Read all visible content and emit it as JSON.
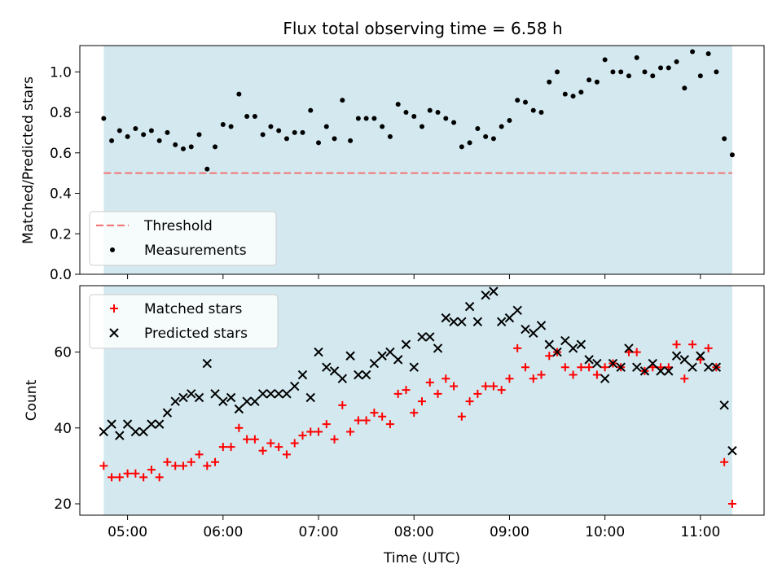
{
  "chart_data": [
    {
      "type": "scatter",
      "title": "Flux total observing time = 6.58 h",
      "xlabel": "",
      "ylabel": "Matched/Predicted stars",
      "ylim": [
        0.0,
        1.13
      ],
      "xlim": [
        "04:30",
        "11:40"
      ],
      "yticks": [
        "0.0",
        "0.2",
        "0.4",
        "0.6",
        "0.8",
        "1.0"
      ],
      "threshold": 0.5,
      "observing_window": [
        "04:45",
        "11:20"
      ],
      "legend_placement": "lower-left",
      "legend": [
        "Threshold",
        "Measurements"
      ],
      "series": [
        {
          "name": "Measurements",
          "x": [
            "04:45",
            "04:50",
            "04:55",
            "05:00",
            "05:05",
            "05:10",
            "05:15",
            "05:20",
            "05:25",
            "05:30",
            "05:35",
            "05:40",
            "05:45",
            "05:50",
            "05:55",
            "06:00",
            "06:05",
            "06:10",
            "06:15",
            "06:20",
            "06:25",
            "06:30",
            "06:35",
            "06:40",
            "06:45",
            "06:50",
            "06:55",
            "07:00",
            "07:05",
            "07:10",
            "07:15",
            "07:20",
            "07:25",
            "07:30",
            "07:35",
            "07:40",
            "07:45",
            "07:50",
            "07:55",
            "08:00",
            "08:05",
            "08:10",
            "08:15",
            "08:20",
            "08:25",
            "08:30",
            "08:35",
            "08:40",
            "08:45",
            "08:50",
            "08:55",
            "09:00",
            "09:05",
            "09:10",
            "09:15",
            "09:20",
            "09:25",
            "09:30",
            "09:35",
            "09:40",
            "09:45",
            "09:50",
            "09:55",
            "10:00",
            "10:05",
            "10:10",
            "10:15",
            "10:20",
            "10:25",
            "10:30",
            "10:35",
            "10:40",
            "10:45",
            "10:50",
            "10:55",
            "11:00",
            "11:05",
            "11:10",
            "11:15",
            "11:20"
          ],
          "values": [
            0.77,
            0.66,
            0.71,
            0.68,
            0.72,
            0.69,
            0.71,
            0.66,
            0.7,
            0.64,
            0.62,
            0.63,
            0.69,
            0.52,
            0.63,
            0.74,
            0.73,
            0.89,
            0.78,
            0.78,
            0.69,
            0.73,
            0.71,
            0.67,
            0.7,
            0.7,
            0.81,
            0.65,
            0.73,
            0.67,
            0.86,
            0.66,
            0.77,
            0.77,
            0.77,
            0.73,
            0.68,
            0.84,
            0.8,
            0.78,
            0.73,
            0.81,
            0.8,
            0.77,
            0.75,
            0.63,
            0.65,
            0.72,
            0.68,
            0.67,
            0.73,
            0.76,
            0.86,
            0.85,
            0.81,
            0.8,
            0.95,
            1.0,
            0.89,
            0.88,
            0.9,
            0.96,
            0.95,
            1.06,
            1.0,
            1.0,
            0.98,
            1.07,
            1.0,
            0.98,
            1.02,
            1.02,
            1.05,
            0.92,
            1.1,
            0.98,
            1.09,
            1.0,
            0.67,
            0.59
          ]
        }
      ]
    },
    {
      "type": "scatter",
      "title": "",
      "xlabel": "Time (UTC)",
      "ylabel": "Count",
      "ylim": [
        17,
        77.5
      ],
      "xlim": [
        "04:30",
        "11:40"
      ],
      "xticks": [
        "05:00",
        "06:00",
        "07:00",
        "08:00",
        "09:00",
        "10:00",
        "11:00"
      ],
      "yticks": [
        "20",
        "40",
        "60"
      ],
      "observing_window": [
        "04:45",
        "11:20"
      ],
      "legend_placement": "upper-left",
      "legend": [
        "Matched stars",
        "Predicted stars"
      ],
      "series": [
        {
          "name": "Matched stars",
          "x": [
            "04:45",
            "04:50",
            "04:55",
            "05:00",
            "05:05",
            "05:10",
            "05:15",
            "05:20",
            "05:25",
            "05:30",
            "05:35",
            "05:40",
            "05:45",
            "05:50",
            "05:55",
            "06:00",
            "06:05",
            "06:10",
            "06:15",
            "06:20",
            "06:25",
            "06:30",
            "06:35",
            "06:40",
            "06:45",
            "06:50",
            "06:55",
            "07:00",
            "07:05",
            "07:10",
            "07:15",
            "07:20",
            "07:25",
            "07:30",
            "07:35",
            "07:40",
            "07:45",
            "07:50",
            "07:55",
            "08:00",
            "08:05",
            "08:10",
            "08:15",
            "08:20",
            "08:25",
            "08:30",
            "08:35",
            "08:40",
            "08:45",
            "08:50",
            "08:55",
            "09:00",
            "09:05",
            "09:10",
            "09:15",
            "09:20",
            "09:25",
            "09:30",
            "09:35",
            "09:40",
            "09:45",
            "09:50",
            "09:55",
            "10:00",
            "10:05",
            "10:10",
            "10:15",
            "10:20",
            "10:25",
            "10:30",
            "10:35",
            "10:40",
            "10:45",
            "10:50",
            "10:55",
            "11:00",
            "11:05",
            "11:10",
            "11:15",
            "11:20"
          ],
          "values": [
            30,
            27,
            27,
            28,
            28,
            27,
            29,
            27,
            31,
            30,
            30,
            31,
            33,
            30,
            31,
            35,
            35,
            40,
            37,
            37,
            34,
            36,
            35,
            33,
            36,
            38,
            39,
            39,
            41,
            37,
            46,
            39,
            42,
            42,
            44,
            43,
            41,
            49,
            50,
            44,
            47,
            52,
            49,
            53,
            51,
            43,
            47,
            49,
            51,
            51,
            50,
            53,
            61,
            56,
            53,
            54,
            59,
            60,
            56,
            54,
            56,
            56,
            54,
            56,
            57,
            56,
            60,
            60,
            55,
            56,
            56,
            56,
            62,
            53,
            62,
            58,
            61,
            56,
            31,
            20
          ]
        },
        {
          "name": "Predicted stars",
          "x": [
            "04:45",
            "04:50",
            "04:55",
            "05:00",
            "05:05",
            "05:10",
            "05:15",
            "05:20",
            "05:25",
            "05:30",
            "05:35",
            "05:40",
            "05:45",
            "05:50",
            "05:55",
            "06:00",
            "06:05",
            "06:10",
            "06:15",
            "06:20",
            "06:25",
            "06:30",
            "06:35",
            "06:40",
            "06:45",
            "06:50",
            "06:55",
            "07:00",
            "07:05",
            "07:10",
            "07:15",
            "07:20",
            "07:25",
            "07:30",
            "07:35",
            "07:40",
            "07:45",
            "07:50",
            "07:55",
            "08:00",
            "08:05",
            "08:10",
            "08:15",
            "08:20",
            "08:25",
            "08:30",
            "08:35",
            "08:40",
            "08:45",
            "08:50",
            "08:55",
            "09:00",
            "09:05",
            "09:10",
            "09:15",
            "09:20",
            "09:25",
            "09:30",
            "09:35",
            "09:40",
            "09:45",
            "09:50",
            "09:55",
            "10:00",
            "10:05",
            "10:10",
            "10:15",
            "10:20",
            "10:25",
            "10:30",
            "10:35",
            "10:40",
            "10:45",
            "10:50",
            "10:55",
            "11:00",
            "11:05",
            "11:10",
            "11:15",
            "11:20"
          ],
          "values": [
            39,
            41,
            38,
            41,
            39,
            39,
            41,
            41,
            44,
            47,
            48,
            49,
            48,
            57,
            49,
            47,
            48,
            45,
            47,
            47,
            49,
            49,
            49,
            49,
            51,
            54,
            48,
            60,
            56,
            55,
            53,
            59,
            54,
            54,
            57,
            59,
            60,
            58,
            62,
            56,
            64,
            64,
            61,
            69,
            68,
            68,
            72,
            68,
            75,
            76,
            68,
            69,
            71,
            66,
            65,
            67,
            62,
            60,
            63,
            61,
            62,
            58,
            57,
            53,
            57,
            56,
            61,
            56,
            55,
            57,
            55,
            55,
            59,
            58,
            56,
            59,
            56,
            56,
            46,
            34
          ]
        }
      ]
    }
  ],
  "colors": {
    "observing_band": "#d3e9ef",
    "threshold_line": "#f07b7b",
    "measurement_marker": "#000000",
    "matched_marker": "#ff0000",
    "predicted_marker": "#000000"
  }
}
